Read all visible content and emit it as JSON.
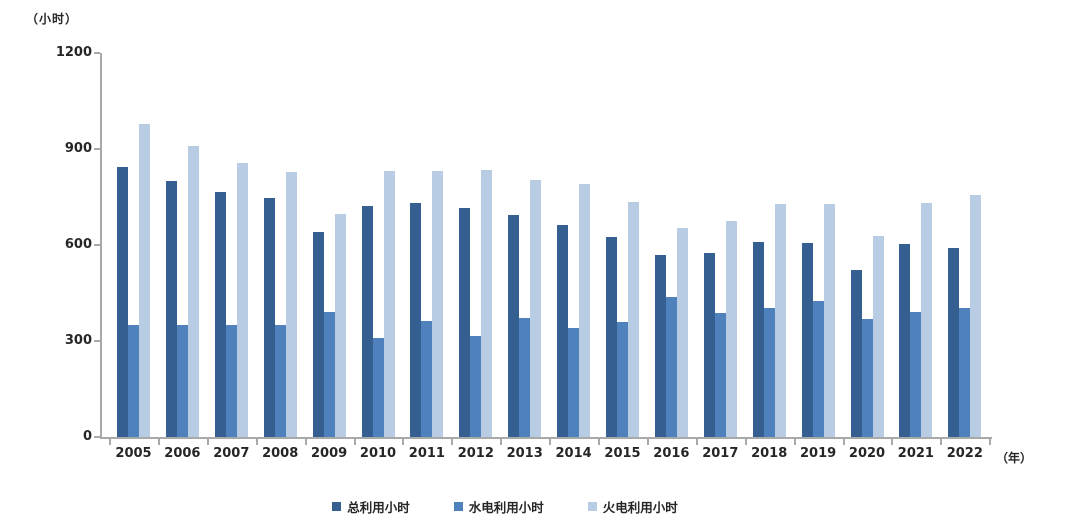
{
  "chart_data": {
    "type": "bar",
    "title": "",
    "ylabel": "（小时）",
    "xlabel": "（年）",
    "ylim": [
      0,
      1200
    ],
    "yticks": [
      0,
      300,
      600,
      900,
      1200
    ],
    "grid": false,
    "legend_position": "bottom",
    "categories": [
      "2005",
      "2006",
      "2007",
      "2008",
      "2009",
      "2010",
      "2011",
      "2012",
      "2013",
      "2014",
      "2015",
      "2016",
      "2017",
      "2018",
      "2019",
      "2020",
      "2021",
      "2022"
    ],
    "series": [
      {
        "name": "总利用小时",
        "color": "#365F91",
        "values": [
          845,
          801,
          765,
          746,
          641,
          722,
          731,
          715,
          694,
          662,
          625,
          570,
          574,
          609,
          605,
          522,
          602,
          590
        ]
      },
      {
        "name": "水电利用小时",
        "color": "#4F81BD",
        "values": [
          350,
          350,
          349,
          350,
          391,
          309,
          364,
          316,
          373,
          340,
          360,
          439,
          389,
          402,
          426,
          368,
          392,
          402
        ]
      },
      {
        "name": "火电利用小时",
        "color": "#B8CCE4",
        "values": [
          977,
          910,
          857,
          827,
          696,
          831,
          832,
          834,
          802,
          790,
          733,
          652,
          674,
          728,
          727,
          628,
          732,
          756
        ]
      }
    ]
  },
  "style": {
    "axis_color": "#a9a9a9",
    "text_color": "#262626",
    "background": "#ffffff"
  }
}
